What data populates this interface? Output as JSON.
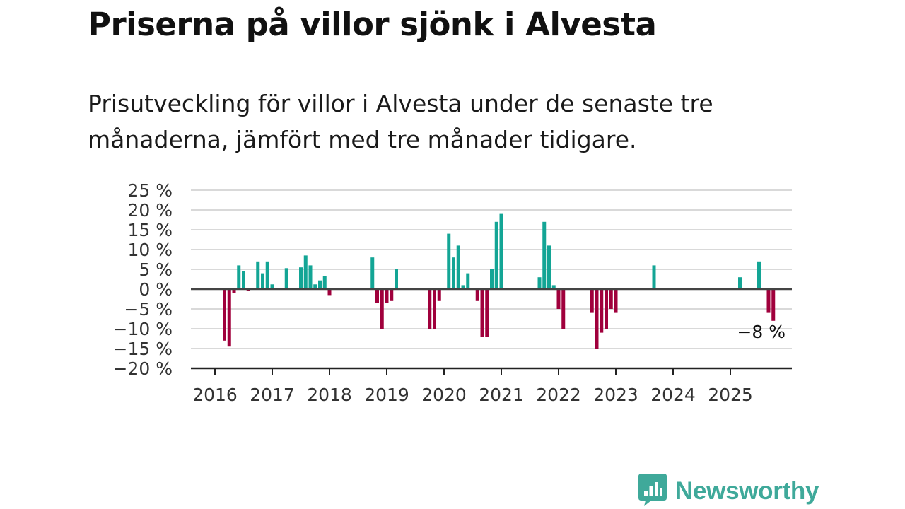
{
  "title": "Priserna på villor sjönk i Alvesta",
  "subtitle": "Prisutveckling för villor i Alvesta under de senaste tre månaderna, jämfört med tre månader tidigare.",
  "brand": {
    "name": "Newsworthy",
    "icon": "bar-chart-speech-bubble-icon",
    "color": "#3fa99a"
  },
  "colors": {
    "positive": "#13a595",
    "negative": "#a0003c",
    "grid": "#d9d9d9",
    "axis": "#444444"
  },
  "chart_data": {
    "type": "bar",
    "title": "Priserna på villor sjönk i Alvesta",
    "xlabel": "",
    "ylabel": "",
    "ylim": [
      -20,
      25
    ],
    "y_ticks": [
      25,
      20,
      15,
      10,
      5,
      0,
      -5,
      -10,
      -15,
      -20
    ],
    "y_tick_labels": [
      "25 %",
      "20 %",
      "15 %",
      "10 %",
      "5 %",
      "0 %",
      "−5 %",
      "−10 %",
      "−15 %",
      "−20 %"
    ],
    "x_ticks": [
      "2016",
      "2017",
      "2018",
      "2019",
      "2020",
      "2021",
      "2022",
      "2023",
      "2024",
      "2025"
    ],
    "x_range": [
      "2016-01",
      "2026-06"
    ],
    "grid": true,
    "unit": "%",
    "values": [
      {
        "month": "2016-03",
        "value": -13
      },
      {
        "month": "2016-04",
        "value": -14.5
      },
      {
        "month": "2016-05",
        "value": -1
      },
      {
        "month": "2016-06",
        "value": 6
      },
      {
        "month": "2016-07",
        "value": 4.5
      },
      {
        "month": "2016-08",
        "value": -0.5
      },
      {
        "month": "2016-10",
        "value": 7
      },
      {
        "month": "2016-11",
        "value": 4
      },
      {
        "month": "2016-12",
        "value": 7
      },
      {
        "month": "2017-01",
        "value": 1.2
      },
      {
        "month": "2017-04",
        "value": 5.3
      },
      {
        "month": "2017-07",
        "value": 5.5
      },
      {
        "month": "2017-08",
        "value": 8.5
      },
      {
        "month": "2017-09",
        "value": 6
      },
      {
        "month": "2017-10",
        "value": 1.2
      },
      {
        "month": "2017-11",
        "value": 2.2
      },
      {
        "month": "2017-12",
        "value": 3.3
      },
      {
        "month": "2018-01",
        "value": -1.5
      },
      {
        "month": "2018-10",
        "value": 8
      },
      {
        "month": "2018-11",
        "value": -3.5
      },
      {
        "month": "2018-12",
        "value": -10
      },
      {
        "month": "2019-01",
        "value": -3.5
      },
      {
        "month": "2019-02",
        "value": -3
      },
      {
        "month": "2019-03",
        "value": 5
      },
      {
        "month": "2019-10",
        "value": -10
      },
      {
        "month": "2019-11",
        "value": -10
      },
      {
        "month": "2019-12",
        "value": -3
      },
      {
        "month": "2020-02",
        "value": 14
      },
      {
        "month": "2020-03",
        "value": 8
      },
      {
        "month": "2020-04",
        "value": 11
      },
      {
        "month": "2020-05",
        "value": 1
      },
      {
        "month": "2020-06",
        "value": 4
      },
      {
        "month": "2020-08",
        "value": -3
      },
      {
        "month": "2020-09",
        "value": -12
      },
      {
        "month": "2020-10",
        "value": -12
      },
      {
        "month": "2020-11",
        "value": 5
      },
      {
        "month": "2020-12",
        "value": 17
      },
      {
        "month": "2021-01",
        "value": 19
      },
      {
        "month": "2021-09",
        "value": 3
      },
      {
        "month": "2021-10",
        "value": 17
      },
      {
        "month": "2021-11",
        "value": 11
      },
      {
        "month": "2021-12",
        "value": 1
      },
      {
        "month": "2022-01",
        "value": -5
      },
      {
        "month": "2022-02",
        "value": -10
      },
      {
        "month": "2022-08",
        "value": -6
      },
      {
        "month": "2022-09",
        "value": -15
      },
      {
        "month": "2022-10",
        "value": -11
      },
      {
        "month": "2022-11",
        "value": -10
      },
      {
        "month": "2022-12",
        "value": -5
      },
      {
        "month": "2023-01",
        "value": -6
      },
      {
        "month": "2023-09",
        "value": 6
      },
      {
        "month": "2025-03",
        "value": 3
      },
      {
        "month": "2025-07",
        "value": 7
      },
      {
        "month": "2025-09",
        "value": -6
      },
      {
        "month": "2025-10",
        "value": -8
      }
    ],
    "annotation": {
      "text": "−8 %",
      "month": "2025-10",
      "value": -8
    }
  }
}
